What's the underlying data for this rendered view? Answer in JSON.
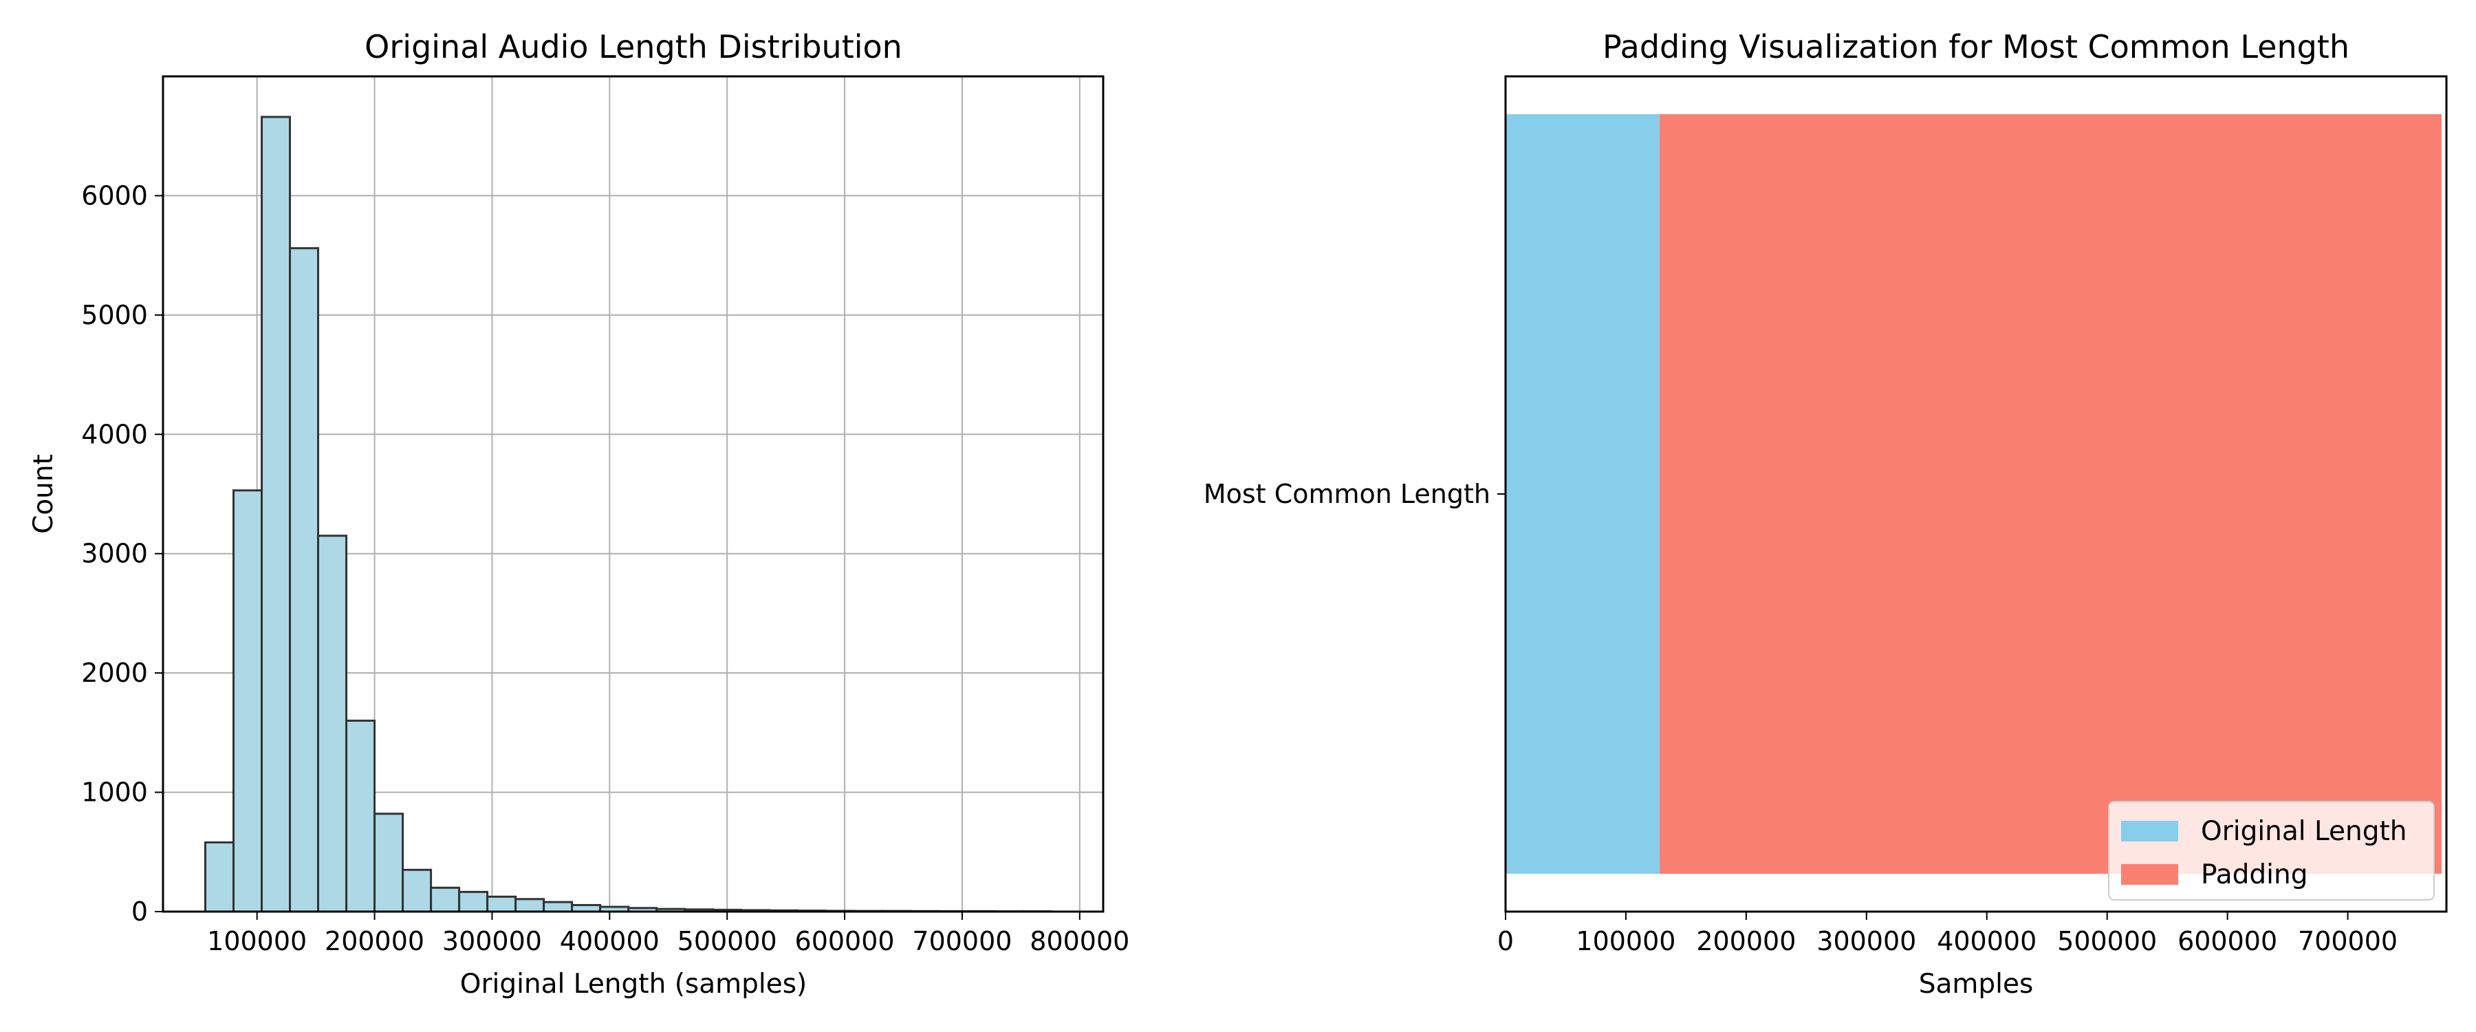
{
  "chart_data": [
    {
      "type": "bar",
      "subtype": "histogram",
      "title": "Original Audio Length Distribution",
      "xlabel": "Original Length (samples)",
      "ylabel": "Count",
      "xlim": [
        20000,
        820000
      ],
      "ylim": [
        0,
        7000
      ],
      "xticks": [
        100000,
        200000,
        300000,
        400000,
        500000,
        600000,
        700000,
        800000
      ],
      "yticks": [
        0,
        1000,
        2000,
        3000,
        4000,
        5000,
        6000
      ],
      "grid": true,
      "bar_color": "#add8e6",
      "edge_color": "#333333",
      "bin_start": 56000,
      "bin_width": 24000,
      "values": [
        580,
        3530,
        6660,
        5560,
        3150,
        1600,
        820,
        350,
        200,
        165,
        125,
        105,
        80,
        55,
        40,
        30,
        22,
        18,
        15,
        12,
        10,
        8,
        6,
        5,
        5,
        4,
        3,
        3,
        2,
        2
      ]
    },
    {
      "type": "bar",
      "subtype": "stacked-horizontal",
      "title": "Padding Visualization for Most Common Length",
      "xlabel": "Samples",
      "ylabel": "",
      "categories": [
        "Most Common Length"
      ],
      "xlim": [
        0,
        782000
      ],
      "xticks": [
        0,
        100000,
        200000,
        300000,
        400000,
        500000,
        600000,
        700000
      ],
      "grid": false,
      "legend_position": "bottom-right",
      "series": [
        {
          "name": "Original Length",
          "values": [
            128000
          ],
          "color": "#87ceeb"
        },
        {
          "name": "Padding",
          "values": [
            650000
          ],
          "color": "#fa8072"
        }
      ]
    }
  ]
}
